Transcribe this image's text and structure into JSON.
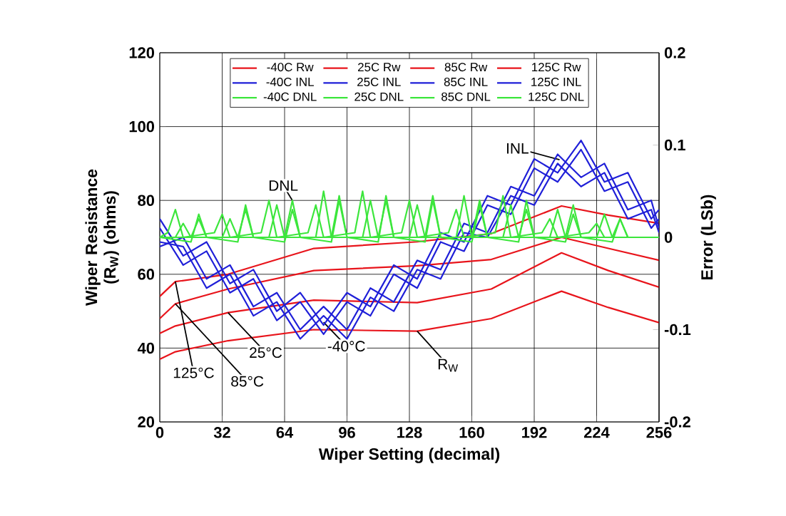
{
  "chart_data": {
    "type": "line",
    "xlabel": "Wiper Setting (decimal)",
    "ylabel": "Wiper Resistance (R$_{W}$) (ohms)",
    "y2label": "Error (LSb)",
    "xlim": [
      0,
      256
    ],
    "xticks": [
      0,
      32,
      64,
      96,
      128,
      160,
      192,
      224,
      256
    ],
    "ylim": [
      20,
      120
    ],
    "yticks": [
      20,
      40,
      60,
      80,
      100,
      120
    ],
    "y2lim": [
      -0.2,
      0.2
    ],
    "y2ticks": [
      -0.2,
      -0.1,
      0,
      0.1,
      0.2
    ],
    "grid": true,
    "legend": "top",
    "annotations": [
      {
        "text": "DNL",
        "x": 68,
        "y": 80
      },
      {
        "text": "INL",
        "x": 205,
        "y": 91
      },
      {
        "text": "R$_{W}$",
        "x": 132,
        "y": 44.6
      },
      {
        "text": "25°C",
        "x": 35,
        "y": 49.6
      },
      {
        "text": "-40°C",
        "x": 84,
        "y": 47
      },
      {
        "text": "125°C",
        "x": 8,
        "y": 58
      },
      {
        "text": "85°C",
        "x": 8,
        "y": 52
      }
    ],
    "series": [
      {
        "name": "-40C Rw",
        "color": "#e8141b",
        "x": [
          0,
          8,
          35,
          79,
          132,
          170,
          206,
          230,
          256
        ],
        "values": [
          37,
          39,
          42,
          45,
          44.6,
          48,
          55.4,
          51,
          46.9
        ]
      },
      {
        "name": "25C Rw",
        "color": "#e8141b",
        "x": [
          0,
          8,
          35,
          79,
          132,
          170,
          206,
          230,
          256
        ],
        "values": [
          44,
          46,
          49.6,
          53,
          52.3,
          56,
          65.8,
          61,
          56.5
        ]
      },
      {
        "name": "85C Rw",
        "color": "#e8141b",
        "x": [
          0,
          8,
          35,
          79,
          132,
          170,
          206,
          230,
          256
        ],
        "values": [
          48,
          52,
          56,
          61,
          62.3,
          64,
          70,
          67,
          63.8
        ]
      },
      {
        "name": "125C Rw",
        "color": "#e8141b",
        "x": [
          0,
          8,
          35,
          79,
          132,
          170,
          206,
          230,
          256
        ],
        "values": [
          54,
          58,
          60,
          67,
          68.8,
          71,
          78.5,
          76,
          73.8
        ]
      },
      {
        "name": "-40C INL",
        "color": "#1f1fd8",
        "axis": "y2",
        "x": [
          0,
          12,
          24,
          36,
          48,
          60,
          72,
          84,
          96,
          108,
          120,
          132,
          144,
          156,
          168,
          180,
          192,
          204,
          216,
          228,
          240,
          252,
          256
        ],
        "values": [
          0.01,
          -0.03,
          -0.015,
          -0.06,
          -0.045,
          -0.09,
          -0.07,
          -0.105,
          -0.07,
          -0.085,
          -0.04,
          -0.055,
          -0.005,
          -0.015,
          0.035,
          0.025,
          0.075,
          0.06,
          0.095,
          0.05,
          0.06,
          0.01,
          0.02
        ]
      },
      {
        "name": "25C INL",
        "color": "#1f1fd8",
        "axis": "y2",
        "x": [
          0,
          12,
          24,
          36,
          48,
          60,
          72,
          84,
          96,
          108,
          120,
          132,
          144,
          156,
          168,
          180,
          192,
          204,
          216,
          228,
          240,
          252,
          256
        ],
        "values": [
          -0.005,
          -0.01,
          -0.055,
          -0.04,
          -0.085,
          -0.07,
          -0.11,
          -0.085,
          -0.11,
          -0.065,
          -0.08,
          -0.035,
          -0.045,
          0.005,
          0,
          0.045,
          0.035,
          0.08,
          0.055,
          0.07,
          0.02,
          0.03,
          0.005
        ]
      },
      {
        "name": "85C INL",
        "color": "#1f1fd8",
        "axis": "y2",
        "x": [
          0,
          12,
          24,
          36,
          48,
          60,
          72,
          84,
          96,
          108,
          120,
          132,
          144,
          156,
          168,
          180,
          192,
          204,
          216,
          228,
          240,
          252,
          256
        ],
        "values": [
          0.02,
          -0.02,
          -0.005,
          -0.05,
          -0.035,
          -0.08,
          -0.06,
          -0.095,
          -0.06,
          -0.075,
          -0.03,
          -0.045,
          0.005,
          -0.005,
          0.045,
          0.035,
          0.085,
          0.07,
          0.105,
          0.06,
          0.07,
          0.02,
          0.03
        ]
      },
      {
        "name": "125C INL",
        "color": "#1f1fd8",
        "axis": "y2",
        "x": [
          0,
          12,
          24,
          36,
          48,
          60,
          72,
          84,
          96,
          108,
          120,
          132,
          144,
          156,
          168,
          180,
          192,
          204,
          216,
          228,
          240,
          252,
          256
        ],
        "values": [
          -0.01,
          0,
          -0.045,
          -0.03,
          -0.075,
          -0.06,
          -0.1,
          -0.075,
          -0.1,
          -0.055,
          -0.07,
          -0.025,
          -0.035,
          0.015,
          0.005,
          0.055,
          0.045,
          0.09,
          0.065,
          0.08,
          0.03,
          0.04,
          0.01
        ]
      },
      {
        "name": "-40C DNL",
        "color": "#3ce63c",
        "axis": "y2",
        "x": [
          0,
          16,
          20,
          24,
          40,
          44,
          48,
          64,
          68,
          72,
          88,
          92,
          96,
          112,
          116,
          120,
          136,
          140,
          144,
          160,
          164,
          168,
          184,
          188,
          192,
          208,
          212,
          216,
          232,
          236,
          240,
          256
        ],
        "values": [
          0,
          0,
          0.02,
          0,
          0,
          0.03,
          0,
          0,
          0.04,
          0,
          0,
          0.045,
          0,
          0,
          0.04,
          0,
          0,
          0.045,
          0,
          0,
          0.04,
          0,
          0,
          0.03,
          0,
          0,
          0.035,
          0,
          0,
          0.02,
          0,
          0
        ]
      },
      {
        "name": "25C DNL",
        "color": "#3ce63c",
        "axis": "y2",
        "x": [
          0,
          16,
          20,
          24,
          40,
          44,
          48,
          64,
          68,
          72,
          88,
          92,
          96,
          112,
          116,
          120,
          136,
          140,
          144,
          160,
          164,
          168,
          184,
          188,
          192,
          208,
          212,
          216,
          232,
          236,
          240,
          256
        ],
        "values": [
          0,
          -0.005,
          0.025,
          0,
          -0.005,
          0.035,
          0,
          -0.005,
          0.03,
          0,
          -0.005,
          0.04,
          0,
          -0.005,
          0.045,
          0,
          -0.005,
          0.04,
          0,
          -0.005,
          0.035,
          0,
          -0.005,
          0.04,
          0,
          -0.005,
          0.025,
          0,
          -0.005,
          0.02,
          0,
          0
        ]
      },
      {
        "name": "85C DNL",
        "color": "#3ce63c",
        "axis": "y2",
        "x": [
          0,
          8,
          12,
          16,
          32,
          36,
          40,
          56,
          60,
          64,
          80,
          84,
          88,
          104,
          108,
          112,
          128,
          132,
          136,
          152,
          156,
          160,
          176,
          180,
          184,
          200,
          204,
          208,
          224,
          228,
          232,
          256
        ],
        "values": [
          0,
          0,
          0.015,
          0,
          0,
          0.02,
          0,
          0,
          0.035,
          0,
          0,
          0.05,
          0,
          0,
          0.04,
          0,
          0,
          0.035,
          0,
          0,
          0.045,
          0,
          0,
          0.035,
          0,
          0,
          0.03,
          0,
          0,
          0.025,
          0,
          0
        ]
      },
      {
        "name": "125C DNL",
        "color": "#3ce63c",
        "axis": "y2",
        "x": [
          0,
          4,
          8,
          12,
          28,
          32,
          36,
          52,
          56,
          60,
          76,
          80,
          84,
          100,
          104,
          108,
          124,
          128,
          132,
          148,
          152,
          156,
          172,
          176,
          180,
          196,
          200,
          204,
          220,
          224,
          228,
          256
        ],
        "values": [
          0,
          0.005,
          0.03,
          0,
          0.005,
          0.025,
          0,
          0.005,
          0.04,
          0,
          0.005,
          0.035,
          0,
          0.005,
          0.05,
          0,
          0.005,
          0.04,
          0,
          0.005,
          0.03,
          0,
          0.005,
          0.045,
          0,
          0.005,
          0.02,
          0,
          0.005,
          0.015,
          0,
          0
        ]
      }
    ]
  }
}
